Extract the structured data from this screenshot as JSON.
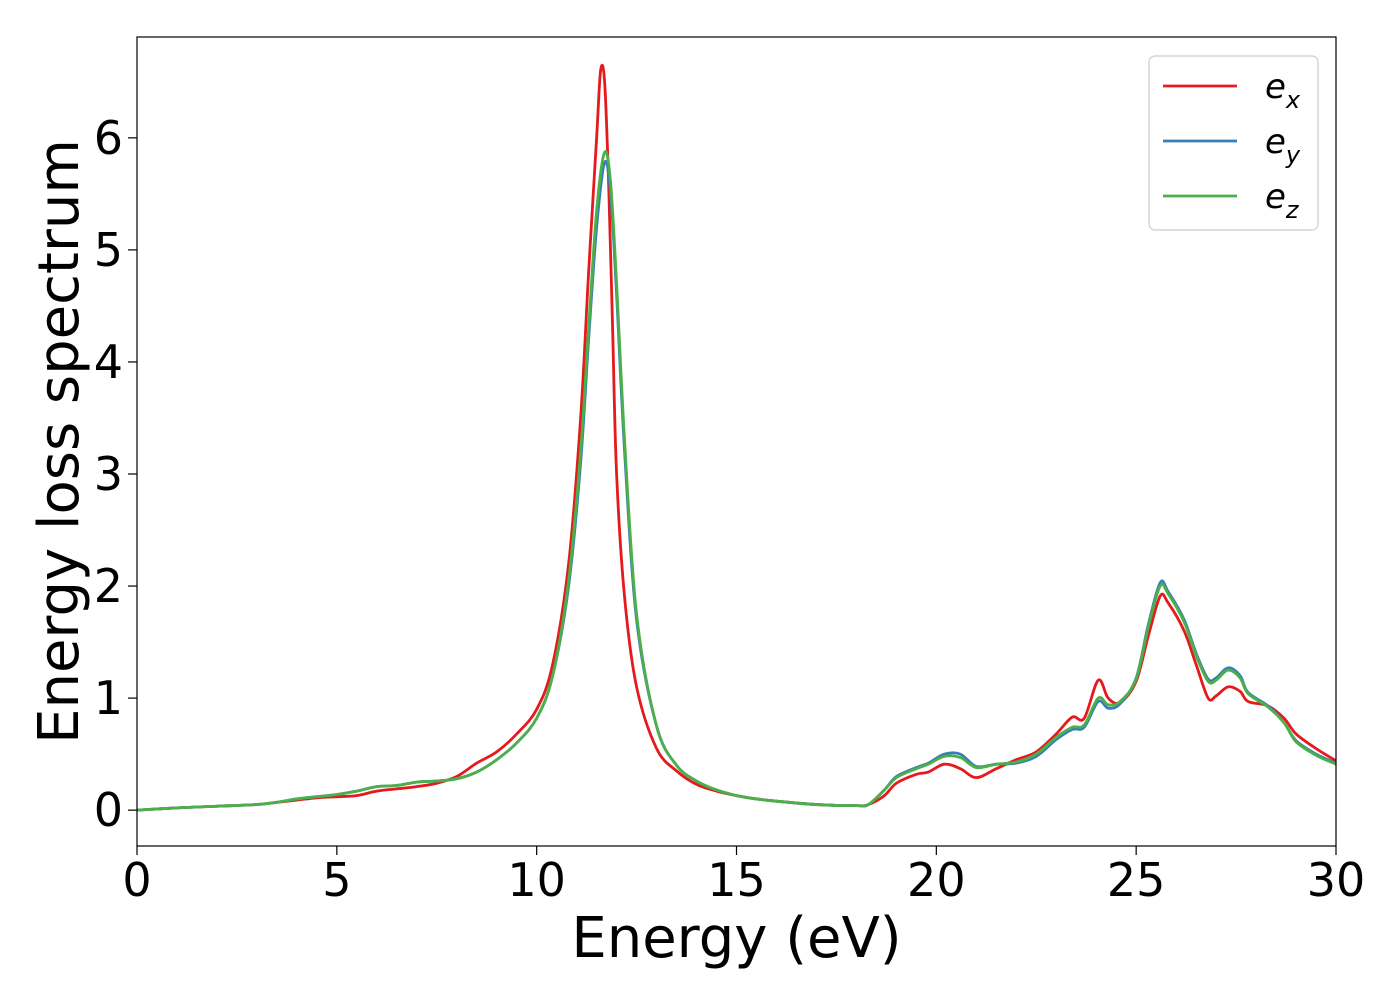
{
  "chart_data": {
    "type": "line",
    "xlabel": "Energy (eV)",
    "ylabel": "Energy loss spectrum",
    "xlim": [
      0,
      30
    ],
    "ylim": [
      -0.32,
      6.9
    ],
    "xticks": [
      0,
      5,
      10,
      15,
      20,
      25,
      30
    ],
    "yticks": [
      0,
      1,
      2,
      3,
      4,
      5,
      6
    ],
    "xtick_labels": [
      "0",
      "5",
      "10",
      "15",
      "20",
      "25",
      "30"
    ],
    "ytick_labels": [
      "0",
      "1",
      "2",
      "3",
      "4",
      "5",
      "6"
    ],
    "grid": false,
    "legend_position": "top-right",
    "series": [
      {
        "name": "e",
        "subscript": "x",
        "color": "#e41a1c",
        "points": [
          [
            0,
            0
          ],
          [
            1,
            0.02
          ],
          [
            2,
            0.035
          ],
          [
            3,
            0.05
          ],
          [
            3.5,
            0.07
          ],
          [
            4,
            0.09
          ],
          [
            4.5,
            0.11
          ],
          [
            5,
            0.12
          ],
          [
            5.5,
            0.13
          ],
          [
            6,
            0.17
          ],
          [
            6.5,
            0.19
          ],
          [
            7,
            0.21
          ],
          [
            7.5,
            0.24
          ],
          [
            8,
            0.3
          ],
          [
            8.5,
            0.42
          ],
          [
            9,
            0.52
          ],
          [
            9.5,
            0.68
          ],
          [
            10,
            0.9
          ],
          [
            10.4,
            1.3
          ],
          [
            10.8,
            2.2
          ],
          [
            11.1,
            3.5
          ],
          [
            11.3,
            4.8
          ],
          [
            11.5,
            6.0
          ],
          [
            11.6,
            6.6
          ],
          [
            11.7,
            6.5
          ],
          [
            11.8,
            5.6
          ],
          [
            11.9,
            4.3
          ],
          [
            12,
            3.0
          ],
          [
            12.2,
            1.9
          ],
          [
            12.5,
            1.1
          ],
          [
            13,
            0.55
          ],
          [
            13.5,
            0.35
          ],
          [
            14,
            0.23
          ],
          [
            14.5,
            0.17
          ],
          [
            15,
            0.13
          ],
          [
            15.5,
            0.1
          ],
          [
            16,
            0.08
          ],
          [
            17,
            0.05
          ],
          [
            18,
            0.04
          ],
          [
            18.3,
            0.05
          ],
          [
            18.7,
            0.13
          ],
          [
            19,
            0.24
          ],
          [
            19.5,
            0.32
          ],
          [
            19.8,
            0.34
          ],
          [
            20.2,
            0.41
          ],
          [
            20.6,
            0.37
          ],
          [
            21,
            0.29
          ],
          [
            21.5,
            0.37
          ],
          [
            22,
            0.45
          ],
          [
            22.5,
            0.52
          ],
          [
            23,
            0.68
          ],
          [
            23.4,
            0.83
          ],
          [
            23.7,
            0.82
          ],
          [
            24.05,
            1.16
          ],
          [
            24.3,
            1.0
          ],
          [
            24.6,
            0.96
          ],
          [
            25,
            1.15
          ],
          [
            25.3,
            1.55
          ],
          [
            25.6,
            1.91
          ],
          [
            25.8,
            1.85
          ],
          [
            26.2,
            1.6
          ],
          [
            26.5,
            1.3
          ],
          [
            26.8,
            1.0
          ],
          [
            27,
            1.02
          ],
          [
            27.3,
            1.1
          ],
          [
            27.6,
            1.06
          ],
          [
            27.8,
            0.97
          ],
          [
            28.3,
            0.93
          ],
          [
            28.7,
            0.82
          ],
          [
            29,
            0.68
          ],
          [
            29.5,
            0.55
          ],
          [
            30,
            0.44
          ]
        ]
      },
      {
        "name": "e",
        "subscript": "y",
        "color": "#377eb8",
        "points": [
          [
            0,
            0
          ],
          [
            1,
            0.02
          ],
          [
            2,
            0.035
          ],
          [
            3,
            0.05
          ],
          [
            3.5,
            0.07
          ],
          [
            4,
            0.1
          ],
          [
            4.5,
            0.12
          ],
          [
            5,
            0.14
          ],
          [
            5.5,
            0.17
          ],
          [
            6,
            0.21
          ],
          [
            6.5,
            0.22
          ],
          [
            7,
            0.25
          ],
          [
            7.5,
            0.26
          ],
          [
            8,
            0.28
          ],
          [
            8.5,
            0.34
          ],
          [
            9,
            0.45
          ],
          [
            9.5,
            0.6
          ],
          [
            10,
            0.82
          ],
          [
            10.4,
            1.2
          ],
          [
            10.8,
            2.0
          ],
          [
            11.1,
            3.1
          ],
          [
            11.3,
            4.2
          ],
          [
            11.5,
            5.2
          ],
          [
            11.7,
            5.78
          ],
          [
            11.85,
            5.5
          ],
          [
            12,
            4.6
          ],
          [
            12.2,
            3.2
          ],
          [
            12.5,
            1.7
          ],
          [
            13,
            0.75
          ],
          [
            13.5,
            0.4
          ],
          [
            14,
            0.26
          ],
          [
            14.5,
            0.18
          ],
          [
            15,
            0.13
          ],
          [
            15.5,
            0.1
          ],
          [
            16,
            0.08
          ],
          [
            17,
            0.05
          ],
          [
            18,
            0.04
          ],
          [
            18.3,
            0.05
          ],
          [
            18.7,
            0.18
          ],
          [
            19,
            0.3
          ],
          [
            19.5,
            0.38
          ],
          [
            19.8,
            0.42
          ],
          [
            20.2,
            0.5
          ],
          [
            20.6,
            0.5
          ],
          [
            21,
            0.39
          ],
          [
            21.5,
            0.41
          ],
          [
            22,
            0.42
          ],
          [
            22.5,
            0.48
          ],
          [
            23,
            0.63
          ],
          [
            23.4,
            0.72
          ],
          [
            23.7,
            0.74
          ],
          [
            24.05,
            0.97
          ],
          [
            24.3,
            0.91
          ],
          [
            24.6,
            0.95
          ],
          [
            25,
            1.18
          ],
          [
            25.3,
            1.65
          ],
          [
            25.6,
            2.03
          ],
          [
            25.8,
            1.95
          ],
          [
            26.2,
            1.7
          ],
          [
            26.5,
            1.4
          ],
          [
            26.8,
            1.17
          ],
          [
            27,
            1.18
          ],
          [
            27.3,
            1.27
          ],
          [
            27.6,
            1.2
          ],
          [
            27.8,
            1.05
          ],
          [
            28.3,
            0.93
          ],
          [
            28.7,
            0.78
          ],
          [
            29,
            0.62
          ],
          [
            29.5,
            0.5
          ],
          [
            30,
            0.42
          ]
        ]
      },
      {
        "name": "e",
        "subscript": "z",
        "color": "#4daf4a",
        "points": [
          [
            0,
            0
          ],
          [
            1,
            0.02
          ],
          [
            2,
            0.035
          ],
          [
            3,
            0.05
          ],
          [
            3.5,
            0.07
          ],
          [
            4,
            0.1
          ],
          [
            4.5,
            0.12
          ],
          [
            5,
            0.14
          ],
          [
            5.5,
            0.17
          ],
          [
            6,
            0.21
          ],
          [
            6.5,
            0.22
          ],
          [
            7,
            0.25
          ],
          [
            7.5,
            0.26
          ],
          [
            8,
            0.28
          ],
          [
            8.5,
            0.34
          ],
          [
            9,
            0.45
          ],
          [
            9.5,
            0.6
          ],
          [
            10,
            0.82
          ],
          [
            10.4,
            1.2
          ],
          [
            10.8,
            2.05
          ],
          [
            11.1,
            3.2
          ],
          [
            11.3,
            4.3
          ],
          [
            11.5,
            5.35
          ],
          [
            11.7,
            5.87
          ],
          [
            11.85,
            5.6
          ],
          [
            12,
            4.7
          ],
          [
            12.2,
            3.3
          ],
          [
            12.5,
            1.75
          ],
          [
            13,
            0.75
          ],
          [
            13.5,
            0.4
          ],
          [
            14,
            0.26
          ],
          [
            14.5,
            0.18
          ],
          [
            15,
            0.13
          ],
          [
            15.5,
            0.1
          ],
          [
            16,
            0.08
          ],
          [
            17,
            0.05
          ],
          [
            18,
            0.04
          ],
          [
            18.3,
            0.05
          ],
          [
            18.7,
            0.18
          ],
          [
            19,
            0.29
          ],
          [
            19.5,
            0.37
          ],
          [
            19.8,
            0.41
          ],
          [
            20.2,
            0.48
          ],
          [
            20.6,
            0.47
          ],
          [
            21,
            0.38
          ],
          [
            21.5,
            0.41
          ],
          [
            22,
            0.43
          ],
          [
            22.5,
            0.5
          ],
          [
            23,
            0.65
          ],
          [
            23.4,
            0.74
          ],
          [
            23.7,
            0.76
          ],
          [
            24.05,
            1.0
          ],
          [
            24.3,
            0.94
          ],
          [
            24.6,
            0.97
          ],
          [
            25,
            1.17
          ],
          [
            25.3,
            1.63
          ],
          [
            25.6,
            2.0
          ],
          [
            25.8,
            1.93
          ],
          [
            26.2,
            1.68
          ],
          [
            26.5,
            1.38
          ],
          [
            26.8,
            1.15
          ],
          [
            27,
            1.16
          ],
          [
            27.3,
            1.25
          ],
          [
            27.6,
            1.18
          ],
          [
            27.8,
            1.04
          ],
          [
            28.3,
            0.92
          ],
          [
            28.7,
            0.78
          ],
          [
            29,
            0.61
          ],
          [
            29.5,
            0.49
          ],
          [
            30,
            0.41
          ]
        ]
      }
    ]
  }
}
